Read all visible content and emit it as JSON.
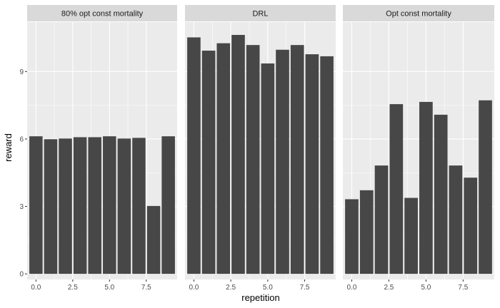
{
  "chart_data": {
    "type": "bar",
    "xlabel": "repetition",
    "ylabel": "reward",
    "ylim": [
      -0.25,
      11.2
    ],
    "xlim": [
      -0.6,
      9.6
    ],
    "x_ticks": [
      0.0,
      2.5,
      5.0,
      7.5
    ],
    "x_tick_labels": [
      "0.0",
      "2.5",
      "5.0",
      "7.5"
    ],
    "y_ticks": [
      0,
      3,
      6,
      9
    ],
    "y_tick_labels": [
      "0",
      "3",
      "6",
      "9"
    ],
    "x": [
      0,
      1,
      2,
      3,
      4,
      5,
      6,
      7,
      8,
      9
    ],
    "facets": [
      {
        "name": "80% opt const mortality",
        "values": [
          6.12,
          5.99,
          6.02,
          6.08,
          6.08,
          6.12,
          6.02,
          6.05,
          3.02,
          6.12
        ]
      },
      {
        "name": "DRL",
        "values": [
          10.52,
          9.93,
          10.26,
          10.63,
          10.18,
          9.36,
          9.97,
          10.18,
          9.77,
          9.68
        ]
      },
      {
        "name": "Opt const mortality",
        "values": [
          3.32,
          3.72,
          4.82,
          7.55,
          3.38,
          7.65,
          7.08,
          4.82,
          4.28,
          7.72
        ]
      }
    ],
    "grid": true,
    "legend": "none"
  },
  "colors": {
    "bar": "#474747",
    "panel_background": "#ebebeb",
    "grid_major": "#ffffff",
    "strip_background": "#d9d9d9"
  }
}
